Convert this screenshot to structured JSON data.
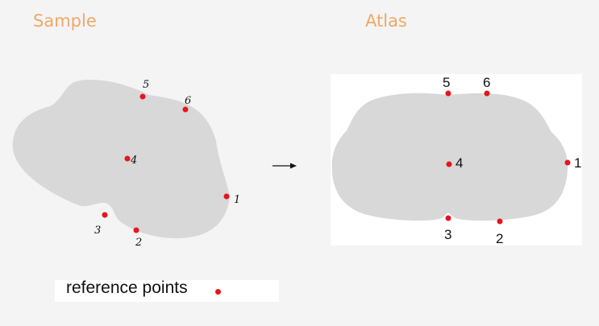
{
  "titles": {
    "sample": "Sample",
    "atlas": "Atlas"
  },
  "legend": {
    "label": "reference points"
  },
  "colors": {
    "title": "#f0a868",
    "shape": "#d8d8d8",
    "point": "#e8141e",
    "atlas_bg": "#ffffff"
  },
  "arrow": {
    "icon": "right-arrow-icon"
  },
  "sample_points": [
    "1",
    "2",
    "3",
    "4",
    "5",
    "6"
  ],
  "atlas_points": [
    "1",
    "2",
    "3",
    "4",
    "5",
    "6"
  ]
}
